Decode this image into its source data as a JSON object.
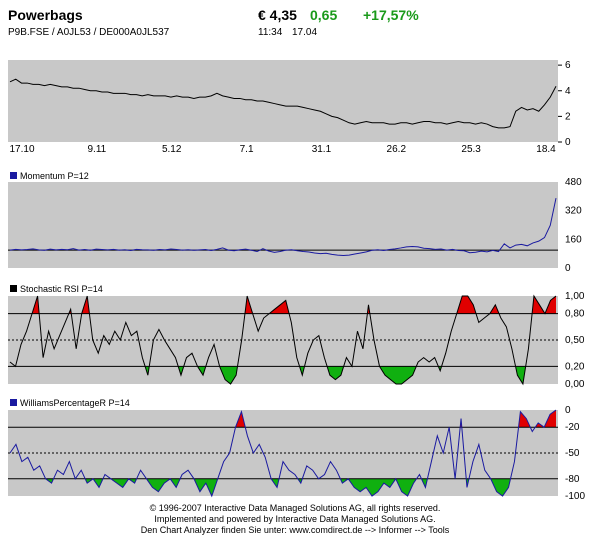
{
  "header": {
    "title": "Powerbags",
    "ids": "P9B.FSE  /  A0JL53  /  DE000A0JL537",
    "price": "€ 4,35",
    "change": "0,65",
    "change_pct": "+17,57%",
    "time": "11:34",
    "date": "17.04"
  },
  "footer": {
    "line1": "© 1996-2007 Interactive Data Managed Solutions AG, all rights reserved.",
    "line2": "Implemented and powered by  Interactive Data Managed Solutions AG.",
    "line3": "Den Chart Analyzer finden Sie unter: www.comdirect.de --> Informer --> Tools"
  },
  "colors": {
    "panel_bg": "#c8c8c8",
    "price_line": "#000000",
    "momentum_line": "#1a1aa0",
    "overbought": "#e00000",
    "oversold": "#10b010",
    "positive": "#1a9a1a"
  },
  "chart_data": [
    {
      "type": "line",
      "name": "price",
      "x_ticks": [
        "17.10",
        "9.11",
        "5.12",
        "7.1",
        "31.1",
        "26.2",
        "25.3",
        "18.4"
      ],
      "y_ticks": [
        "6",
        "4",
        "2",
        "0"
      ],
      "ylim": [
        0,
        6.4
      ],
      "values": [
        4.7,
        4.9,
        4.6,
        4.6,
        4.5,
        4.5,
        4.4,
        4.5,
        4.4,
        4.3,
        4.3,
        4.2,
        4.2,
        4.1,
        4.0,
        4.0,
        3.9,
        3.9,
        3.8,
        3.8,
        3.8,
        3.7,
        3.7,
        3.6,
        3.7,
        3.6,
        3.6,
        3.6,
        3.5,
        3.6,
        3.5,
        3.5,
        3.4,
        3.5,
        3.5,
        3.6,
        3.8,
        3.6,
        3.5,
        3.4,
        3.4,
        3.3,
        3.3,
        3.2,
        3.2,
        3.1,
        3.0,
        2.9,
        2.8,
        2.8,
        2.8,
        2.7,
        2.6,
        2.5,
        2.4,
        2.2,
        2.0,
        1.9,
        1.7,
        1.5,
        1.4,
        1.5,
        1.6,
        1.5,
        1.5,
        1.5,
        1.4,
        1.4,
        1.5,
        1.5,
        1.4,
        1.5,
        1.6,
        1.6,
        1.5,
        1.5,
        1.4,
        1.5,
        1.6,
        1.5,
        1.5,
        1.4,
        1.5,
        1.4,
        1.2,
        1.1,
        1.1,
        1.2,
        2.4,
        2.7,
        2.5,
        2.6,
        2.4,
        2.9,
        3.5,
        4.35
      ]
    },
    {
      "type": "line",
      "name": "Momentum",
      "label": "Momentum P=12",
      "y_ticks": [
        "480",
        "320",
        "160",
        "0"
      ],
      "ylim": [
        0,
        480
      ],
      "reference": 100,
      "values": [
        100,
        104,
        101,
        103,
        107,
        101,
        99,
        105,
        101,
        104,
        102,
        108,
        100,
        103,
        99,
        105,
        103,
        101,
        104,
        100,
        102,
        98,
        104,
        102,
        101,
        99,
        103,
        101,
        106,
        103,
        100,
        102,
        99,
        101,
        103,
        98,
        104,
        112,
        100,
        96,
        102,
        105,
        99,
        92,
        108,
        95,
        87,
        92,
        100,
        102,
        96,
        92,
        89,
        84,
        80,
        82,
        76,
        72,
        70,
        72,
        78,
        84,
        90,
        99,
        102,
        98,
        103,
        107,
        112,
        118,
        120,
        118,
        110,
        108,
        104,
        106,
        100,
        104,
        98,
        96,
        85,
        88,
        94,
        90,
        98,
        92,
        135,
        112,
        128,
        132,
        124,
        140,
        150,
        170,
        238,
        390
      ]
    },
    {
      "type": "line",
      "name": "Stochastic RSI",
      "label": "Stochastic RSI P=14",
      "y_ticks": [
        "1,00",
        "0,80",
        "0,50",
        "0,20",
        "0,00"
      ],
      "ylim": [
        0,
        1
      ],
      "upper": 0.8,
      "lower": 0.2,
      "values": [
        0.25,
        0.2,
        0.45,
        0.6,
        0.8,
        1.0,
        0.3,
        0.6,
        0.4,
        0.55,
        0.7,
        0.85,
        0.4,
        0.8,
        1.0,
        0.5,
        0.35,
        0.55,
        0.45,
        0.6,
        0.5,
        0.7,
        0.55,
        0.6,
        0.3,
        0.1,
        0.5,
        0.62,
        0.5,
        0.4,
        0.3,
        0.1,
        0.3,
        0.35,
        0.2,
        0.1,
        0.3,
        0.45,
        0.2,
        0.05,
        0.0,
        0.1,
        0.5,
        1.0,
        0.8,
        0.6,
        0.75,
        0.8,
        0.85,
        0.9,
        0.95,
        0.7,
        0.3,
        0.1,
        0.35,
        0.5,
        0.55,
        0.3,
        0.1,
        0.05,
        0.1,
        0.3,
        0.2,
        0.6,
        0.4,
        0.9,
        0.5,
        0.2,
        0.1,
        0.05,
        0.0,
        0.0,
        0.05,
        0.1,
        0.25,
        0.3,
        0.25,
        0.3,
        0.15,
        0.35,
        0.6,
        0.8,
        1.0,
        1.0,
        0.9,
        0.7,
        0.75,
        0.8,
        0.9,
        0.75,
        0.65,
        0.4,
        0.1,
        0.0,
        0.4,
        1.0,
        0.9,
        0.8,
        0.95,
        1.0
      ]
    },
    {
      "type": "line",
      "name": "WilliamsPercentageR",
      "label": "WilliamsPercentageR P=14",
      "y_ticks": [
        "0",
        "-20",
        "-50",
        "-80",
        "-100"
      ],
      "ylim": [
        -100,
        0
      ],
      "upper": -20,
      "lower": -80,
      "values": [
        -50,
        -40,
        -60,
        -55,
        -70,
        -65,
        -80,
        -85,
        -70,
        -75,
        -60,
        -80,
        -70,
        -85,
        -80,
        -90,
        -75,
        -80,
        -85,
        -90,
        -80,
        -85,
        -70,
        -80,
        -90,
        -95,
        -85,
        -80,
        -90,
        -75,
        -70,
        -80,
        -95,
        -85,
        -100,
        -80,
        -60,
        -50,
        -20,
        -2,
        -30,
        -50,
        -40,
        -55,
        -80,
        -90,
        -60,
        -70,
        -75,
        -85,
        -65,
        -70,
        -80,
        -75,
        -60,
        -70,
        -85,
        -80,
        -90,
        -95,
        -90,
        -100,
        -95,
        -85,
        -90,
        -80,
        -95,
        -100,
        -85,
        -75,
        -90,
        -60,
        -30,
        -50,
        -20,
        -80,
        -10,
        -90,
        -60,
        -40,
        -70,
        -80,
        -95,
        -100,
        -90,
        -60,
        -2,
        -10,
        -25,
        -15,
        -20,
        -5,
        0
      ]
    }
  ]
}
